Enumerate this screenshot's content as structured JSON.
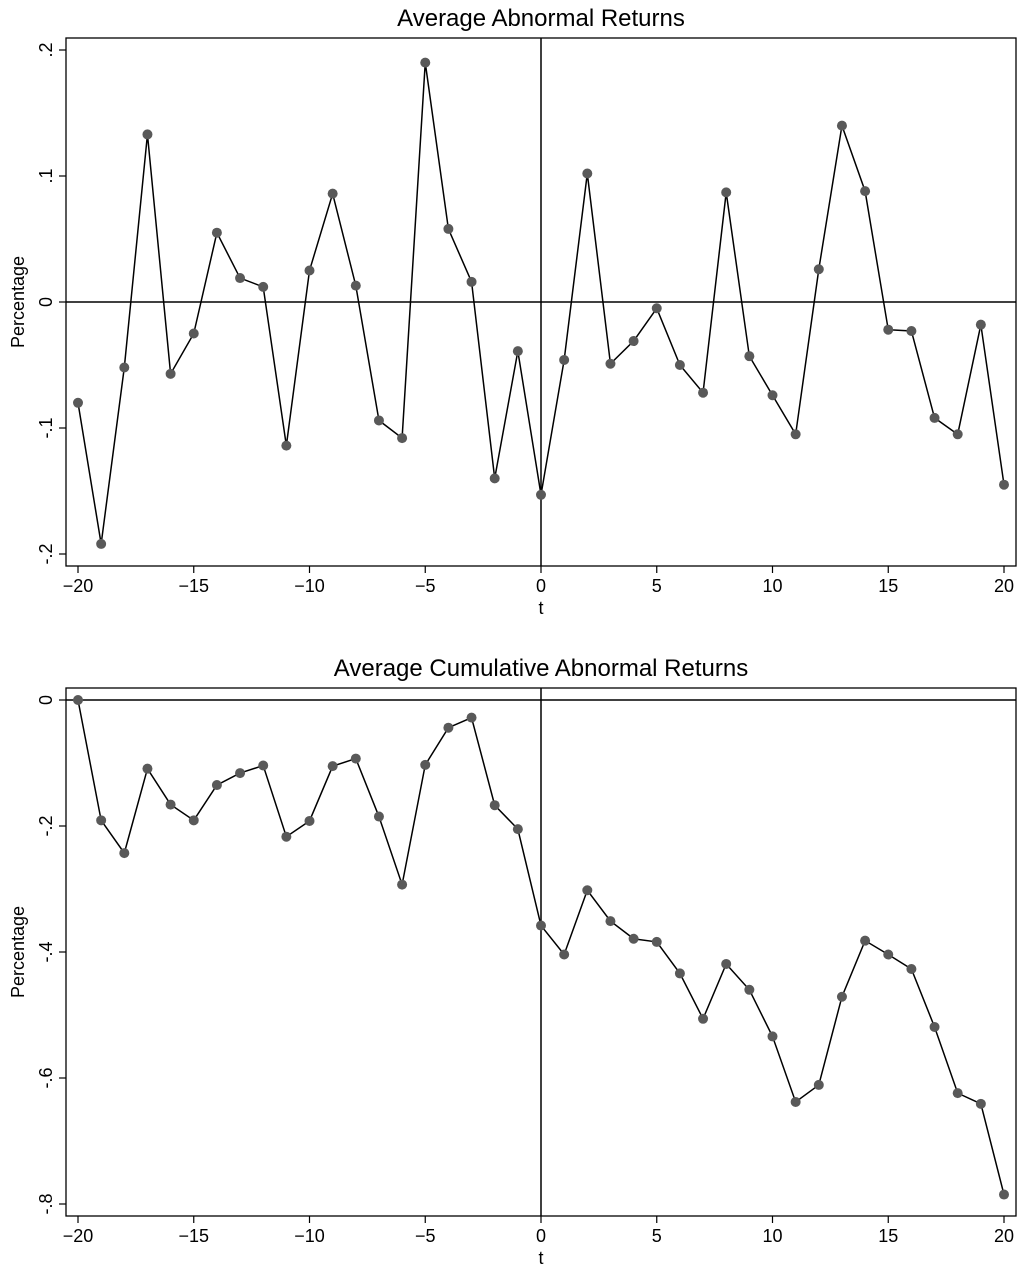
{
  "chart_data": [
    {
      "type": "line",
      "title": "Average Abnormal Returns",
      "xlabel": "t",
      "ylabel": "Percentage",
      "xlim": [
        -20,
        20
      ],
      "ylim": [
        -0.2,
        0.2
      ],
      "x_ticks": [
        -20,
        -15,
        -10,
        -5,
        0,
        5,
        10,
        15,
        20
      ],
      "x_tick_labels": [
        "−20",
        "−15",
        "−10",
        "−5",
        "0",
        "5",
        "10",
        "15",
        "20"
      ],
      "y_ticks": [
        -0.2,
        -0.1,
        0,
        0.1,
        0.2
      ],
      "y_tick_labels": [
        "-.2",
        "-.1",
        "0",
        ".1",
        ".2"
      ],
      "reference_lines": {
        "x": 0,
        "y": 0
      },
      "marker_color": "#595959",
      "line_color": "#000000",
      "series": [
        {
          "x": [
            -20,
            -19,
            -18,
            -17,
            -16,
            -15,
            -14,
            -13,
            -12,
            -11,
            -10,
            -9,
            -8,
            -7,
            -6,
            -5,
            -4,
            -3,
            -2,
            -1,
            0,
            1,
            2,
            3,
            4,
            5,
            6,
            7,
            8,
            9,
            10,
            11,
            12,
            13,
            14,
            15,
            16,
            17,
            18,
            19,
            20
          ],
          "values": [
            -0.08,
            -0.192,
            -0.052,
            0.133,
            -0.057,
            -0.025,
            0.055,
            0.019,
            0.012,
            -0.114,
            0.025,
            0.086,
            0.013,
            -0.094,
            -0.108,
            0.19,
            0.058,
            0.016,
            -0.14,
            -0.039,
            -0.153,
            -0.046,
            0.102,
            -0.049,
            -0.031,
            -0.005,
            -0.05,
            -0.072,
            0.087,
            -0.043,
            -0.074,
            -0.105,
            0.026,
            0.14,
            0.088,
            -0.022,
            -0.023,
            -0.092,
            -0.105,
            -0.018,
            -0.145
          ]
        }
      ]
    },
    {
      "type": "line",
      "title": "Average Cumulative Abnormal Returns",
      "xlabel": "t",
      "ylabel": "Percentage",
      "xlim": [
        -20,
        20
      ],
      "ylim": [
        -0.8,
        0
      ],
      "x_ticks": [
        -20,
        -15,
        -10,
        -5,
        0,
        5,
        10,
        15,
        20
      ],
      "x_tick_labels": [
        "−20",
        "−15",
        "−10",
        "−5",
        "0",
        "5",
        "10",
        "15",
        "20"
      ],
      "y_ticks": [
        -0.8,
        -0.6,
        -0.4,
        -0.2,
        0
      ],
      "y_tick_labels": [
        "-.8",
        "-.6",
        "-.4",
        "-.2",
        "0"
      ],
      "reference_lines": {
        "x": 0,
        "y": 0
      },
      "marker_color": "#595959",
      "line_color": "#000000",
      "series": [
        {
          "x": [
            -20,
            -19,
            -18,
            -17,
            -16,
            -15,
            -14,
            -13,
            -12,
            -11,
            -10,
            -9,
            -8,
            -7,
            -6,
            -5,
            -4,
            -3,
            -2,
            -1,
            0,
            1,
            2,
            3,
            4,
            5,
            6,
            7,
            8,
            9,
            10,
            11,
            12,
            13,
            14,
            15,
            16,
            17,
            18,
            19,
            20
          ],
          "values": [
            0.0,
            -0.191,
            -0.243,
            -0.109,
            -0.166,
            -0.191,
            -0.135,
            -0.116,
            -0.104,
            -0.217,
            -0.192,
            -0.105,
            -0.093,
            -0.185,
            -0.293,
            -0.103,
            -0.044,
            -0.028,
            -0.167,
            -0.205,
            -0.358,
            -0.404,
            -0.302,
            -0.351,
            -0.379,
            -0.384,
            -0.434,
            -0.506,
            -0.419,
            -0.46,
            -0.534,
            -0.638,
            -0.611,
            -0.471,
            -0.382,
            -0.404,
            -0.427,
            -0.519,
            -0.624,
            -0.641,
            -0.785
          ]
        }
      ]
    }
  ]
}
